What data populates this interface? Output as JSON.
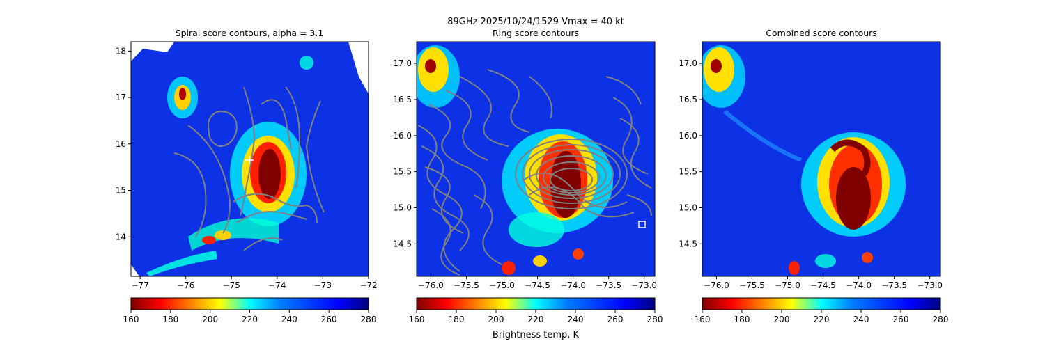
{
  "suptitle": "89GHz  2025/10/24/1529    Vmax = 40 kt",
  "colorbar": {
    "label": "Brightness temp, K",
    "ticks": [
      160,
      180,
      200,
      220,
      240,
      260,
      280
    ],
    "colormap": "jet",
    "range": [
      160,
      280
    ]
  },
  "chart_data": [
    {
      "type": "heatmap",
      "title": "Spiral score contours, alpha =  3.1",
      "xlim": [
        -77.2,
        -72.0
      ],
      "ylim": [
        13.15,
        18.2
      ],
      "xticks": [
        -77,
        -76,
        -75,
        -74,
        -73,
        -72
      ],
      "yticks": [
        14,
        15,
        16,
        17,
        18
      ],
      "xtick_labels": [
        "−77",
        "−76",
        "−75",
        "−74",
        "−73",
        "−72"
      ],
      "ytick_labels": [
        "14",
        "15",
        "16",
        "17",
        "18"
      ],
      "overlay": "spiral score contours (gray)",
      "center_marker": {
        "lon": -74.5,
        "lat": 15.65,
        "symbol": "plus",
        "color": "#ffffff"
      }
    },
    {
      "type": "heatmap",
      "title": "Ring score contours",
      "xlim": [
        -76.2,
        -72.85
      ],
      "ylim": [
        14.05,
        17.3
      ],
      "xticks": [
        -76.0,
        -75.5,
        -75.0,
        -74.5,
        -74.0,
        -73.5,
        -73.0
      ],
      "yticks": [
        14.5,
        15.0,
        15.5,
        16.0,
        16.5,
        17.0
      ],
      "xtick_labels": [
        "−76.0",
        "−75.5",
        "−75.0",
        "−74.5",
        "−74.0",
        "−73.5",
        "−73.0"
      ],
      "ytick_labels": [
        "14.5",
        "15.0",
        "15.5",
        "16.0",
        "16.5",
        "17.0"
      ],
      "overlay": "ring score contours (gray)",
      "center_marker": {
        "lon": -73.02,
        "lat": 14.77,
        "symbol": "square",
        "color": "#ffffff"
      }
    },
    {
      "type": "heatmap",
      "title": "Combined score contours",
      "xlim": [
        -76.2,
        -72.85
      ],
      "ylim": [
        14.05,
        17.3
      ],
      "xticks": [
        -76.0,
        -75.5,
        -75.0,
        -74.5,
        -74.0,
        -73.5,
        -73.0
      ],
      "yticks": [
        14.5,
        15.0,
        15.5,
        16.0,
        16.5,
        17.0
      ],
      "xtick_labels": [
        "−76.0",
        "−75.5",
        "−75.0",
        "−74.5",
        "−74.0",
        "−73.5",
        "−73.0"
      ],
      "ytick_labels": [
        "14.5",
        "15.0",
        "15.5",
        "16.0",
        "16.5",
        "17.0"
      ],
      "overlay": "none"
    }
  ]
}
